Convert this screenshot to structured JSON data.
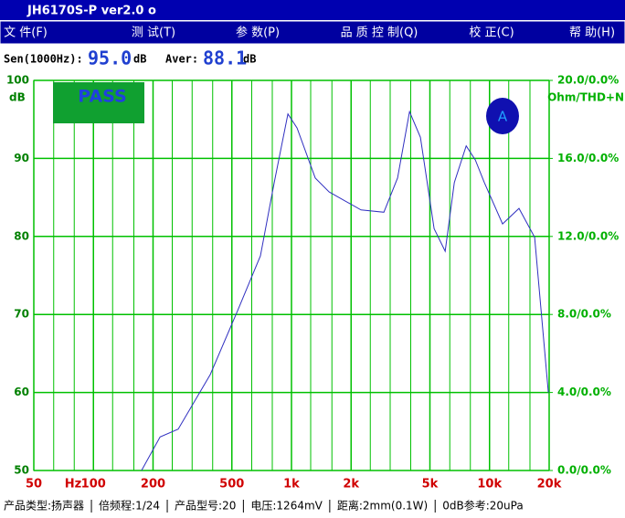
{
  "window": {
    "title": "JH6170S-P   ver2.0  o"
  },
  "menu": [
    "文 件(F)",
    "测 试(T)",
    "参 数(P)",
    "品 质 控 制(Q)",
    "校 正(C)",
    "帮 助(H)"
  ],
  "readout": {
    "sen_label": "Sen(1000Hz):",
    "sen_value": "95.0",
    "sen_unit": "dB",
    "aver_label": "Aver:",
    "aver_value": "88.1",
    "aver_unit": "dB"
  },
  "chart_data": {
    "type": "line",
    "y_label": "dB",
    "y2_label": "Ohm/THD+N",
    "x_unit": "Hz",
    "badge": "PASS",
    "marker": "A",
    "log_x": true,
    "grid": true,
    "color": "#3030c0",
    "grid_color": "#00c000",
    "xlim": [
      50,
      20000
    ],
    "ylim": [
      50,
      100
    ],
    "y2lim": [
      0,
      20
    ],
    "xticks": [
      50,
      100,
      200,
      500,
      {
        "value": 1000,
        "label": "1k"
      },
      {
        "value": 2000,
        "label": "2k"
      },
      {
        "value": 5000,
        "label": "5k"
      },
      {
        "value": 10000,
        "label": "10k"
      },
      {
        "value": 20000,
        "label": "20k"
      }
    ],
    "xgrid": [
      63,
      80,
      125,
      160,
      250,
      315,
      400,
      630,
      800,
      1250,
      1600,
      2500,
      3150,
      4000,
      6300,
      8000,
      12500,
      16000
    ],
    "yticks": [
      50,
      60,
      70,
      80,
      90,
      100
    ],
    "y2ticks": [
      {
        "value": 0,
        "label": "0.0/0.0%"
      },
      {
        "value": 4,
        "label": "4.0/0.0%"
      },
      {
        "value": 8,
        "label": "8.0/0.0%"
      },
      {
        "value": 12,
        "label": "12.0/0.0%"
      },
      {
        "value": 16,
        "label": "16.0/0.0%"
      },
      {
        "value": 20,
        "label": "20.0/0.0%"
      }
    ],
    "x": [
      175,
      217,
      268,
      389,
      535,
      697,
      818,
      959,
      1067,
      1318,
      1549,
      2245,
      2927,
      3433,
      3945,
      4477,
      5250,
      5970,
      6637,
      7621,
      8473,
      9419,
      11640,
      14090,
      16900,
      19800
    ],
    "values": [
      50,
      54.3,
      55.3,
      62.3,
      70.5,
      77.5,
      86.9,
      95.7,
      93.9,
      87.5,
      85.7,
      83.4,
      83.1,
      87.5,
      96.0,
      92.7,
      81.0,
      78.1,
      86.9,
      91.6,
      89.8,
      86.9,
      81.6,
      83.6,
      79.9,
      60.0
    ]
  },
  "status": [
    "产品类型:扬声器",
    "倍频程:1/24",
    "产品型号:20",
    "电压:1264mV",
    "距离:2mm(0.1W)",
    "0dB参考:20uPa"
  ]
}
